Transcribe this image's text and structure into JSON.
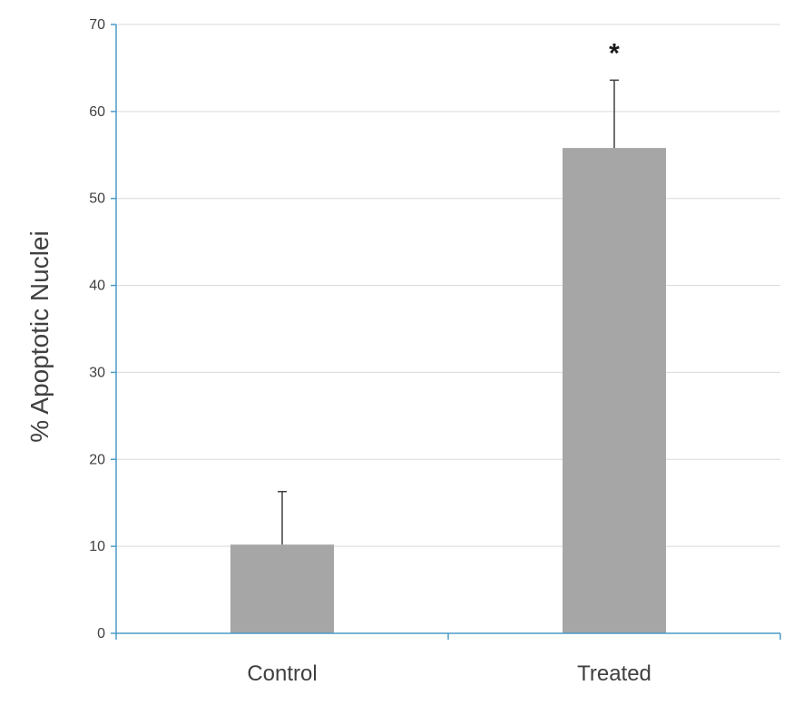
{
  "chart_data": {
    "type": "bar",
    "categories": [
      "Control",
      "Treated"
    ],
    "values": [
      10.2,
      55.8
    ],
    "error_upper": [
      16.3,
      63.6
    ],
    "significance": [
      "",
      "*"
    ],
    "ylabel": "% Apoptotic Nuclei",
    "ylim": [
      0,
      70
    ],
    "yticks": [
      0,
      10,
      20,
      30,
      40,
      50,
      60,
      70
    ],
    "grid": true,
    "legend": "none"
  },
  "colors": {
    "bar": "#a6a6a6",
    "axis": "#4a9cc8",
    "grid": "#d9d9d9",
    "errorbar": "#404040",
    "text": "#404040"
  }
}
